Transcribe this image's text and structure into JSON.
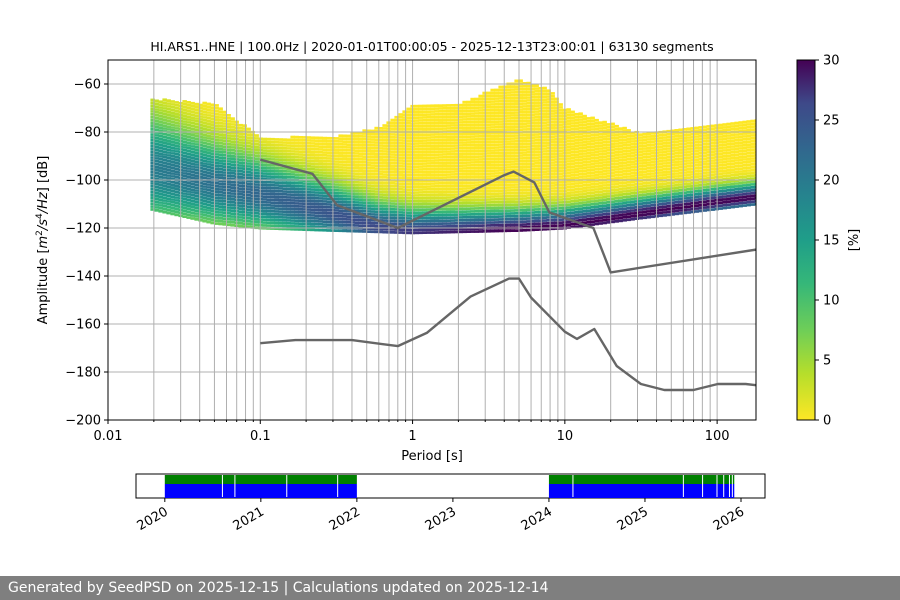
{
  "footer": {
    "text": "Generated by SeedPSD on 2025-12-15 | Calculations updated on 2025-12-14"
  },
  "chart_data": [
    {
      "type": "heatmap",
      "title": "HI.ARS1..HNE | 100.0Hz | 2020-01-01T00:00:05 - 2025-12-13T23:00:01 | 63130 segments",
      "xlabel": "Period [s]",
      "ylabel": "Amplitude [m^2/s^4/Hz] [dB]",
      "x_scale": "log",
      "xlim": [
        0.01,
        180
      ],
      "ylim": [
        -200,
        -50
      ],
      "x_ticks": [
        0.01,
        0.1,
        1,
        10,
        100
      ],
      "x_tick_labels": [
        "0.01",
        "0.1",
        "1",
        "10",
        "100"
      ],
      "y_ticks": [
        -200,
        -180,
        -160,
        -140,
        -120,
        -100,
        -80,
        -60
      ],
      "y_tick_labels": [
        "−200",
        "−180",
        "−160",
        "−140",
        "−120",
        "−100",
        "−80",
        "−60"
      ],
      "grid": "vertical lines at log minor ticks",
      "colormap": "viridis_r",
      "colorbar": {
        "label": "[%]",
        "range": [
          0,
          30
        ],
        "ticks": [
          0,
          5,
          10,
          15,
          20,
          25,
          30
        ],
        "tick_labels": [
          "0",
          "5",
          "10",
          "15",
          "20",
          "25",
          "30"
        ]
      },
      "psd_density": {
        "period_range": [
          0.019,
          180
        ],
        "yellow_upper_envelope": [
          [
            0.019,
            -66
          ],
          [
            0.05,
            -68
          ],
          [
            0.1,
            -82
          ],
          [
            0.3,
            -82
          ],
          [
            0.6,
            -78
          ],
          [
            1,
            -68
          ],
          [
            2,
            -68
          ],
          [
            5,
            -58
          ],
          [
            8,
            -62
          ],
          [
            10,
            -70
          ],
          [
            30,
            -80
          ],
          [
            100,
            -76
          ],
          [
            180,
            -74
          ]
        ],
        "yellow_lower_envelope": [
          [
            0.019,
            -112
          ],
          [
            0.05,
            -118
          ],
          [
            0.1,
            -120
          ],
          [
            0.3,
            -121
          ],
          [
            1,
            -122
          ],
          [
            5,
            -121
          ],
          [
            10,
            -120
          ],
          [
            30,
            -116
          ],
          [
            100,
            -112
          ],
          [
            180,
            -110
          ]
        ],
        "mode_curve": [
          [
            0.019,
            -95
          ],
          [
            0.04,
            -100
          ],
          [
            0.1,
            -106
          ],
          [
            0.3,
            -114
          ],
          [
            0.6,
            -120
          ],
          [
            1,
            -122
          ],
          [
            2,
            -121.5
          ],
          [
            5,
            -120.5
          ],
          [
            10,
            -119
          ],
          [
            20,
            -116
          ],
          [
            50,
            -112
          ],
          [
            100,
            -109
          ],
          [
            180,
            -107
          ]
        ]
      },
      "noise_models": {
        "upper": [
          [
            0.1,
            -91.5
          ],
          [
            0.22,
            -97.4
          ],
          [
            0.32,
            -110.5
          ],
          [
            0.8,
            -120
          ],
          [
            4.0,
            -98
          ],
          [
            4.6,
            -96.5
          ],
          [
            6.3,
            -101
          ],
          [
            7.9,
            -113.5
          ],
          [
            15.4,
            -120
          ],
          [
            20,
            -138.5
          ],
          [
            180,
            -129
          ]
        ],
        "lower": [
          [
            0.1,
            -168
          ],
          [
            0.17,
            -166.7
          ],
          [
            0.4,
            -166.7
          ],
          [
            0.8,
            -169.2
          ],
          [
            1.24,
            -163.7
          ],
          [
            2.4,
            -148.6
          ],
          [
            4.3,
            -141.1
          ],
          [
            5.0,
            -141.1
          ],
          [
            6.0,
            -149
          ],
          [
            10,
            -163.2
          ],
          [
            12,
            -166.2
          ],
          [
            15.6,
            -162.1
          ],
          [
            21.9,
            -177.5
          ],
          [
            31.6,
            -185
          ],
          [
            45,
            -187.5
          ],
          [
            70,
            -187.5
          ],
          [
            101,
            -185
          ],
          [
            154,
            -185
          ],
          [
            180,
            -185.5
          ]
        ]
      }
    },
    {
      "type": "timeline",
      "x_tick_labels": [
        "2020",
        "2021",
        "2022",
        "2023",
        "2024",
        "2025",
        "2026"
      ],
      "x_ticks_years": [
        2020,
        2021,
        2022,
        2023,
        2024,
        2025,
        2026
      ],
      "xlim_years": [
        2019.7,
        2026.25
      ],
      "data_segments_years": [
        [
          2020.0,
          2022.0
        ],
        [
          2024.0,
          2025.93
        ]
      ],
      "colors": {
        "data": "#0000ff",
        "top_strip": "#008000"
      }
    }
  ],
  "colors": {
    "noise_model": "#666666",
    "grid": "#b0b0b0",
    "footer_bg": "#7f7f7f"
  }
}
